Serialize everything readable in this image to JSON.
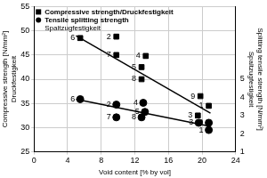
{
  "chart_data": {
    "type": "scatter",
    "xlabel": "Void content [% by vol]",
    "ylabel": [
      "Compressive strength [N/mm²]",
      "Druckfestigkeit"
    ],
    "y2label": [
      "Splitting tensile strength [N/mm²]",
      "Spaltzugfestigkeit"
    ],
    "xlim": [
      0,
      24
    ],
    "xticks": [
      0,
      4,
      8,
      12,
      16,
      20,
      24
    ],
    "ylim": [
      25,
      55
    ],
    "yticks": [
      25,
      30,
      35,
      40,
      45,
      50,
      55
    ],
    "y2lim": [
      1,
      9
    ],
    "y2ticks": [
      1,
      2,
      3,
      4,
      5
    ],
    "grid": true,
    "legend": "top-left",
    "series": [
      {
        "name": "Compressive strength/Druckfestigkeit",
        "color": "#000000",
        "marker": "square",
        "labels": [
          "1",
          "2",
          "3",
          "4",
          "5",
          "6",
          "7",
          "8",
          "9"
        ],
        "x": [
          20.8,
          9.8,
          19.5,
          13.3,
          12.8,
          5.5,
          9.8,
          12.8,
          19.8
        ],
        "values": [
          34.5,
          48.8,
          32.5,
          44.8,
          42.5,
          48.5,
          45,
          40,
          36.5
        ],
        "trend": {
          "x": [
            5,
            21
          ],
          "values": [
            49,
            33
          ]
        }
      },
      {
        "name": [
          "Tensile splitting strength",
          "Spaltzugfestigkeit"
        ],
        "color": "#000000",
        "marker": "circle",
        "axis": "y2",
        "labels": [
          "1",
          "2",
          "3",
          "4",
          "5",
          "6",
          "7",
          "8",
          "9"
        ],
        "x": [
          20.8,
          9.8,
          19.6,
          13,
          13.2,
          5.5,
          9.8,
          12.8,
          20.8
        ],
        "values": [
          2.2,
          3.6,
          2.6,
          3.7,
          3.2,
          3.9,
          2.9,
          2.9,
          2.6
        ],
        "trend": {
          "x": [
            5,
            21
          ],
          "values": [
            3.9,
            2.4
          ]
        }
      }
    ]
  }
}
